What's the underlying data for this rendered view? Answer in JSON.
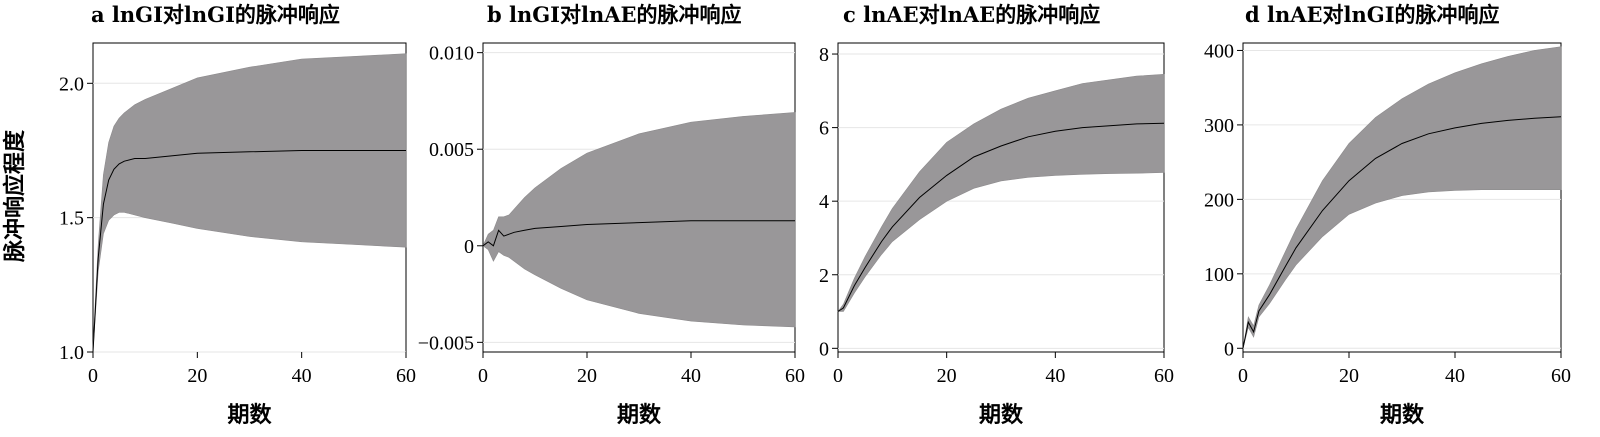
{
  "y_axis_label": "脉冲响应程度",
  "chart_data": [
    {
      "type": "area",
      "title": "a lnGI对lnGI的脉冲响应",
      "xlabel": "期数",
      "ylabel": "脉冲响应程度",
      "xlim": [
        0,
        60
      ],
      "ylim": [
        1.0,
        2.15
      ],
      "xticks": [
        0,
        20,
        40,
        60
      ],
      "xtick_labels": [
        "0",
        "20",
        "40",
        "60"
      ],
      "yticks": [
        1.0,
        1.5,
        2.0
      ],
      "ytick_labels": [
        "1.0",
        "1.5",
        "2.0"
      ],
      "grid": true,
      "x": [
        0,
        1,
        2,
        3,
        4,
        5,
        6,
        8,
        10,
        15,
        20,
        30,
        40,
        50,
        60
      ],
      "series": [
        {
          "role": "upper",
          "values": [
            1.02,
            1.4,
            1.66,
            1.78,
            1.84,
            1.87,
            1.89,
            1.92,
            1.94,
            1.98,
            2.02,
            2.06,
            2.09,
            2.1,
            2.11
          ]
        },
        {
          "role": "irf",
          "values": [
            1.0,
            1.35,
            1.55,
            1.64,
            1.68,
            1.7,
            1.71,
            1.72,
            1.72,
            1.73,
            1.74,
            1.745,
            1.75,
            1.75,
            1.75
          ]
        },
        {
          "role": "lower",
          "values": [
            1.0,
            1.3,
            1.44,
            1.49,
            1.51,
            1.52,
            1.52,
            1.51,
            1.5,
            1.48,
            1.46,
            1.43,
            1.41,
            1.4,
            1.39
          ]
        }
      ]
    },
    {
      "type": "area",
      "title": "b lnGI对lnAE的脉冲响应",
      "xlabel": "期数",
      "ylabel": "",
      "xlim": [
        0,
        60
      ],
      "ylim": [
        -0.0055,
        0.0105
      ],
      "xticks": [
        0,
        20,
        40,
        60
      ],
      "xtick_labels": [
        "0",
        "20",
        "40",
        "60"
      ],
      "yticks": [
        -0.005,
        0,
        0.005,
        0.01
      ],
      "ytick_labels": [
        "−0.005",
        "0",
        "0.005",
        "0.010"
      ],
      "grid": true,
      "x": [
        0,
        1,
        2,
        3,
        4,
        5,
        6,
        8,
        10,
        15,
        20,
        30,
        40,
        50,
        60
      ],
      "series": [
        {
          "role": "upper",
          "values": [
            0.0,
            0.0006,
            0.0008,
            0.0015,
            0.0015,
            0.0016,
            0.0019,
            0.0025,
            0.003,
            0.004,
            0.0048,
            0.0058,
            0.0064,
            0.0067,
            0.0069
          ],
          "note_hidden": true
        },
        {
          "role": "irf",
          "values": [
            0.0,
            0.0002,
            0.0,
            0.0008,
            0.0005,
            0.0006,
            0.0007,
            0.0008,
            0.0009,
            0.001,
            0.0011,
            0.0012,
            0.0013,
            0.0013,
            0.0013
          ]
        },
        {
          "role": "lower",
          "values": [
            0.0,
            -0.0002,
            -0.0008,
            -0.0003,
            -0.0005,
            -0.0006,
            -0.0008,
            -0.0012,
            -0.0015,
            -0.0022,
            -0.0028,
            -0.0035,
            -0.0039,
            -0.0041,
            -0.0042
          ]
        }
      ]
    },
    {
      "type": "area",
      "title": "c lnAE对lnAE的脉冲响应",
      "xlabel": "期数",
      "ylabel": "",
      "xlim": [
        0,
        60
      ],
      "ylim": [
        -0.1,
        8.3
      ],
      "xticks": [
        0,
        20,
        40,
        60
      ],
      "xtick_labels": [
        "0",
        "20",
        "40",
        "60"
      ],
      "yticks": [
        0,
        2,
        4,
        6,
        8
      ],
      "ytick_labels": [
        "0",
        "2",
        "4",
        "6",
        "8"
      ],
      "grid": true,
      "x": [
        0,
        1,
        3,
        5,
        8,
        10,
        15,
        20,
        25,
        30,
        35,
        40,
        45,
        50,
        55,
        60
      ],
      "series": [
        {
          "role": "upper",
          "values": [
            1.0,
            1.2,
            1.9,
            2.5,
            3.3,
            3.8,
            4.8,
            5.6,
            6.1,
            6.5,
            6.8,
            7.0,
            7.2,
            7.3,
            7.4,
            7.45
          ]
        },
        {
          "role": "irf",
          "values": [
            1.0,
            1.1,
            1.7,
            2.2,
            2.9,
            3.3,
            4.1,
            4.7,
            5.2,
            5.5,
            5.75,
            5.9,
            6.0,
            6.05,
            6.1,
            6.12
          ]
        },
        {
          "role": "lower",
          "values": [
            1.0,
            1.0,
            1.5,
            1.95,
            2.55,
            2.9,
            3.5,
            4.0,
            4.35,
            4.55,
            4.65,
            4.7,
            4.73,
            4.75,
            4.76,
            4.78
          ]
        }
      ]
    },
    {
      "type": "area",
      "title": "d lnAE对lnGI的脉冲响应",
      "xlabel": "期数",
      "ylabel": "",
      "xlim": [
        0,
        60
      ],
      "ylim": [
        -5,
        410
      ],
      "xticks": [
        0,
        20,
        40,
        60
      ],
      "xtick_labels": [
        "0",
        "20",
        "40",
        "60"
      ],
      "yticks": [
        0,
        100,
        200,
        300,
        400
      ],
      "ytick_labels": [
        "0",
        "100",
        "200",
        "300",
        "400"
      ],
      "grid": true,
      "x": [
        0,
        1,
        2,
        3,
        5,
        8,
        10,
        15,
        20,
        25,
        30,
        35,
        40,
        45,
        50,
        55,
        60
      ],
      "series": [
        {
          "role": "upper",
          "values": [
            0,
            42,
            30,
            58,
            85,
            130,
            160,
            225,
            275,
            310,
            335,
            355,
            370,
            382,
            392,
            400,
            405
          ]
        },
        {
          "role": "irf",
          "values": [
            0,
            35,
            22,
            50,
            72,
            110,
            135,
            185,
            225,
            255,
            275,
            288,
            296,
            302,
            306,
            309,
            311
          ]
        },
        {
          "role": "lower",
          "values": [
            0,
            28,
            15,
            42,
            60,
            92,
            112,
            150,
            180,
            195,
            205,
            210,
            212,
            213,
            213,
            213,
            213
          ]
        }
      ]
    }
  ]
}
